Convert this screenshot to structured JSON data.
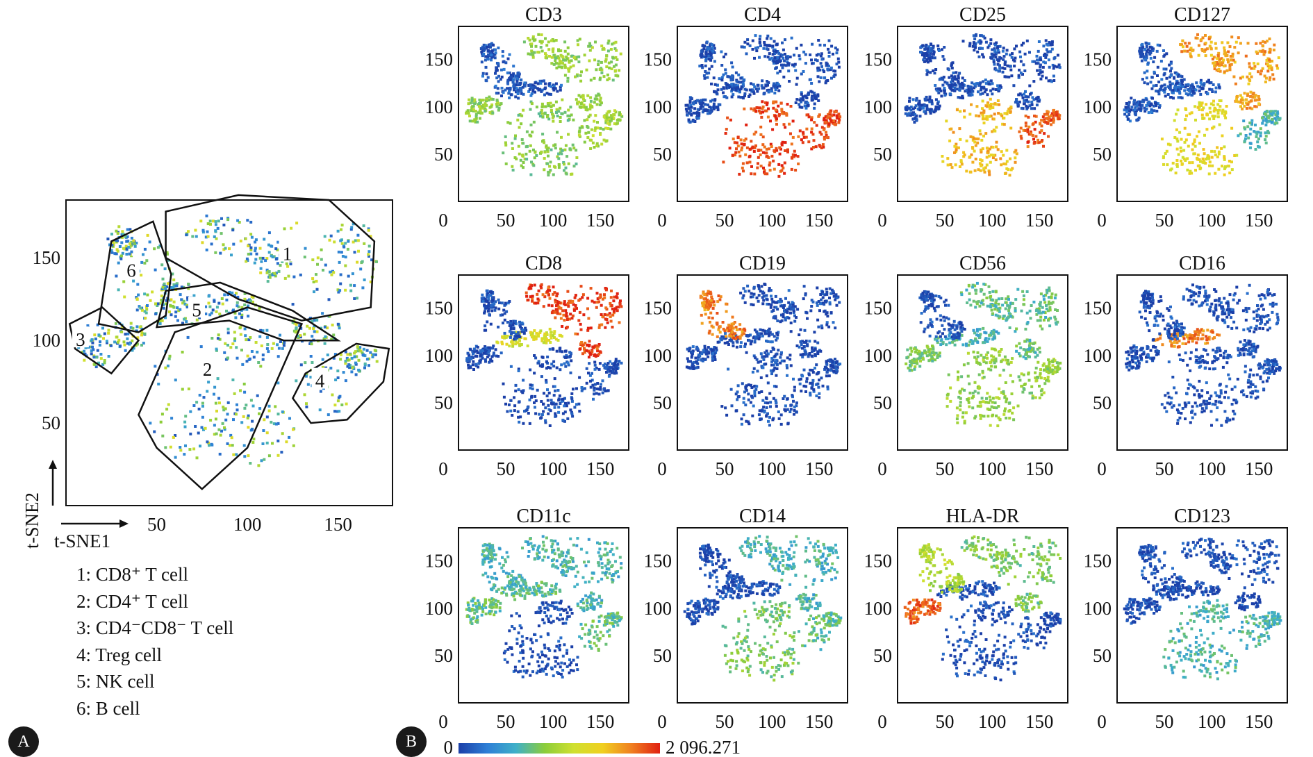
{
  "panel_labels": [
    "A",
    "B"
  ],
  "panel_a": {
    "xlabel": "t-SNE1",
    "ylabel": "t-SNE2",
    "x_ticks": [
      "50",
      "100",
      "150"
    ],
    "y_ticks": [
      "50",
      "100",
      "150"
    ],
    "clusters": [
      {
        "id": "1",
        "label": "1: CD8⁺ T cell"
      },
      {
        "id": "2",
        "label": "2: CD4⁺ T cell"
      },
      {
        "id": "3",
        "label": "3: CD4⁻CD8⁻ T cell"
      },
      {
        "id": "4",
        "label": "4: Treg cell"
      },
      {
        "id": "5",
        "label": "5: NK cell"
      },
      {
        "id": "6",
        "label": "6: B cell"
      }
    ]
  },
  "colorbar": {
    "min_label": "0",
    "max_label": "2 096.271",
    "colors": [
      "#1b3fa8",
      "#2e7fd6",
      "#3fb0c8",
      "#8ccd3a",
      "#cfe030",
      "#f0d020",
      "#f08020",
      "#e02010"
    ]
  },
  "chart_data": {
    "type": "scatter",
    "description_free": true,
    "x_ticks": [
      "0",
      "50",
      "100",
      "150"
    ],
    "y_ticks": [
      "50",
      "100",
      "150"
    ],
    "xlim": [
      0,
      180
    ],
    "ylim": [
      0,
      185
    ],
    "color_range": [
      0,
      2096.271
    ],
    "panels": [
      {
        "marker": "CD3",
        "levels": {
          "c1": 0.45,
          "c2": 0.42,
          "c3": 0.45,
          "c4": 0.48,
          "c5": 0.05,
          "c6": 0.05
        }
      },
      {
        "marker": "CD4",
        "levels": {
          "c1": 0.03,
          "c2": 0.95,
          "c3": 0.03,
          "c4": 0.95,
          "c5": 0.03,
          "c6": 0.03
        }
      },
      {
        "marker": "CD25",
        "levels": {
          "c1": 0.03,
          "c2": 0.75,
          "c3": 0.03,
          "c4": 0.92,
          "c5": 0.03,
          "c6": 0.03
        }
      },
      {
        "marker": "CD127",
        "levels": {
          "c1": 0.8,
          "c2": 0.65,
          "c3": 0.05,
          "c4": 0.3,
          "c5": 0.05,
          "c6": 0.05
        }
      },
      {
        "marker": "CD8",
        "levels": {
          "c1": 0.95,
          "c2": 0.03,
          "c3": 0.03,
          "c4": 0.03,
          "c5": 0.6,
          "c6": 0.03
        }
      },
      {
        "marker": "CD19",
        "levels": {
          "c1": 0.03,
          "c2": 0.03,
          "c3": 0.03,
          "c4": 0.03,
          "c5": 0.03,
          "c6": 0.85
        }
      },
      {
        "marker": "CD56",
        "levels": {
          "c1": 0.35,
          "c2": 0.45,
          "c3": 0.4,
          "c4": 0.45,
          "c5": 0.3,
          "c6": 0.03
        }
      },
      {
        "marker": "CD16",
        "levels": {
          "c1": 0.03,
          "c2": 0.03,
          "c3": 0.03,
          "c4": 0.03,
          "c5": 0.85,
          "c6": 0.03
        }
      },
      {
        "marker": "CD11c",
        "levels": {
          "c1": 0.3,
          "c2": 0.03,
          "c3": 0.35,
          "c4": 0.35,
          "c5": 0.35,
          "c6": 0.3
        }
      },
      {
        "marker": "CD14",
        "levels": {
          "c1": 0.3,
          "c2": 0.4,
          "c3": 0.03,
          "c4": 0.35,
          "c5": 0.03,
          "c6": 0.03
        }
      },
      {
        "marker": "HLA-DR",
        "levels": {
          "c1": 0.4,
          "c2": 0.03,
          "c3": 0.9,
          "c4": 0.03,
          "c5": 0.03,
          "c6": 0.5
        }
      },
      {
        "marker": "CD123",
        "levels": {
          "c1": 0.03,
          "c2": 0.3,
          "c3": 0.03,
          "c4": 0.3,
          "c5": 0.03,
          "c6": 0.03
        }
      }
    ]
  }
}
